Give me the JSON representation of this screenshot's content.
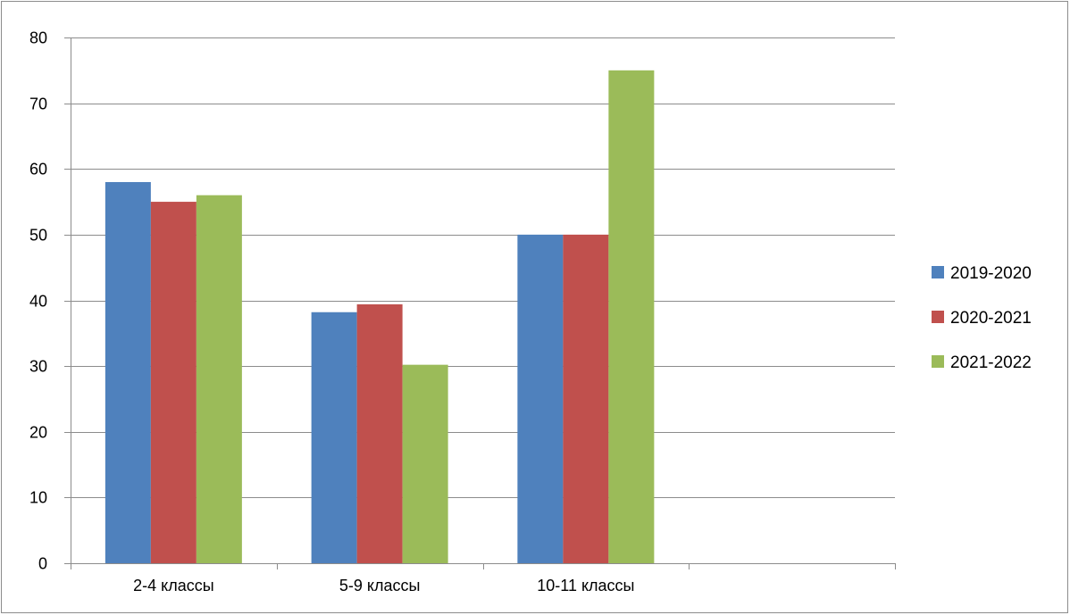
{
  "chart_data": {
    "type": "bar",
    "categories": [
      "2-4 классы",
      "5-9 классы",
      "10-11 классы",
      ""
    ],
    "series": [
      {
        "name": "2019-2020",
        "color": "#4f81bd",
        "values": [
          58,
          38.2,
          50,
          null
        ]
      },
      {
        "name": "2020-2021",
        "color": "#c0504d",
        "values": [
          55,
          39.4,
          50,
          null
        ]
      },
      {
        "name": "2021-2022",
        "color": "#9bbb59",
        "values": [
          56,
          30.2,
          75,
          null
        ]
      }
    ],
    "title": "",
    "xlabel": "",
    "ylabel": "",
    "ylim": [
      0,
      80
    ],
    "yticks": [
      0,
      10,
      20,
      30,
      40,
      50,
      60,
      70,
      80
    ],
    "grid": true,
    "legend_position": "right"
  }
}
